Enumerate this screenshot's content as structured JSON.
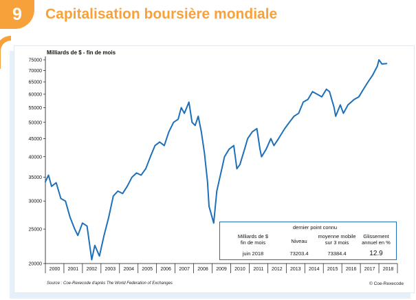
{
  "header": {
    "section_number": "9",
    "title": "Capitalisation boursière mondiale"
  },
  "chart_data": {
    "type": "line",
    "title": "Capitalisation boursière mondiale",
    "ylabel": "Milliards de $ - fin de mois",
    "xlabel": "",
    "y_scale": "log",
    "ylim": [
      20000,
      76000
    ],
    "xlim": [
      "2000-01",
      "2018-12"
    ],
    "y_ticks": [
      20000,
      25000,
      30000,
      35000,
      40000,
      45000,
      50000,
      55000,
      60000,
      65000,
      70000,
      75000
    ],
    "x_tick_labels": [
      "2000",
      "2001",
      "2002",
      "2003",
      "2004",
      "2005",
      "2006",
      "2007",
      "2008",
      "2009",
      "2010",
      "2011",
      "2012",
      "2013",
      "2014",
      "2015",
      "2016",
      "2017",
      "2018"
    ],
    "grid": false,
    "line_color": "#1c6fb8",
    "series": [
      {
        "x": [
          "2000-01",
          "2000-03",
          "2000-05",
          "2000-08",
          "2000-11",
          "2001-02",
          "2001-05",
          "2001-08",
          "2001-10",
          "2002-01",
          "2002-04",
          "2002-07",
          "2002-09",
          "2002-12",
          "2003-03",
          "2003-06",
          "2003-09",
          "2003-12",
          "2004-03",
          "2004-06",
          "2004-09",
          "2004-12",
          "2005-03",
          "2005-06",
          "2005-09",
          "2005-12",
          "2006-03",
          "2006-06",
          "2006-09",
          "2006-12",
          "2007-03",
          "2007-05",
          "2007-07",
          "2007-10",
          "2007-12",
          "2008-02",
          "2008-04",
          "2008-06",
          "2008-08",
          "2008-10",
          "2008-11",
          "2009-02",
          "2009-04",
          "2009-06",
          "2009-09",
          "2009-12",
          "2010-03",
          "2010-05",
          "2010-07",
          "2010-10",
          "2010-12",
          "2011-03",
          "2011-06",
          "2011-08",
          "2011-09",
          "2011-12",
          "2012-03",
          "2012-05",
          "2012-08",
          "2012-12",
          "2013-03",
          "2013-06",
          "2013-09",
          "2013-12",
          "2014-03",
          "2014-06",
          "2014-09",
          "2014-12",
          "2015-03",
          "2015-05",
          "2015-08",
          "2015-09",
          "2015-12",
          "2016-02",
          "2016-05",
          "2016-09",
          "2016-12",
          "2017-03",
          "2017-06",
          "2017-09",
          "2017-12",
          "2018-01",
          "2018-03",
          "2018-06"
        ],
        "y": [
          34000,
          35500,
          33000,
          33800,
          30500,
          30000,
          27000,
          25000,
          24000,
          26000,
          25500,
          20500,
          22500,
          21000,
          24000,
          27000,
          31000,
          32000,
          31500,
          33000,
          35000,
          36000,
          35500,
          37000,
          40000,
          43000,
          44000,
          43000,
          47000,
          50000,
          51000,
          55000,
          53000,
          57000,
          50000,
          49000,
          52000,
          47000,
          41000,
          34000,
          29000,
          26000,
          32000,
          35000,
          40000,
          42000,
          43000,
          37000,
          38000,
          42000,
          45000,
          47000,
          48000,
          42000,
          40000,
          42000,
          45000,
          43000,
          45000,
          48000,
          50000,
          52000,
          53000,
          57000,
          58000,
          61000,
          60000,
          59000,
          62000,
          61000,
          55000,
          52000,
          56000,
          53000,
          56000,
          58000,
          59000,
          62000,
          65000,
          68000,
          72000,
          75000,
          73000,
          73203
        ]
      }
    ]
  },
  "info_box": {
    "header": "dernier point connu",
    "col1_header": "Milliards de $\nfin de mois",
    "col2_header": "Niveau",
    "col3_header": "moyenne mobile\nsur 3 mois",
    "col4_header": "Glissement\nannuel en %",
    "row_label": "juin 2018",
    "level": "73203.4",
    "moving_average": "73384.4",
    "yoy_change": "12.9"
  },
  "footer": {
    "source": "Source : Coe-Rexecode d'après The World Federation of Exchanges",
    "credit": "© Coe-Rexecode"
  }
}
